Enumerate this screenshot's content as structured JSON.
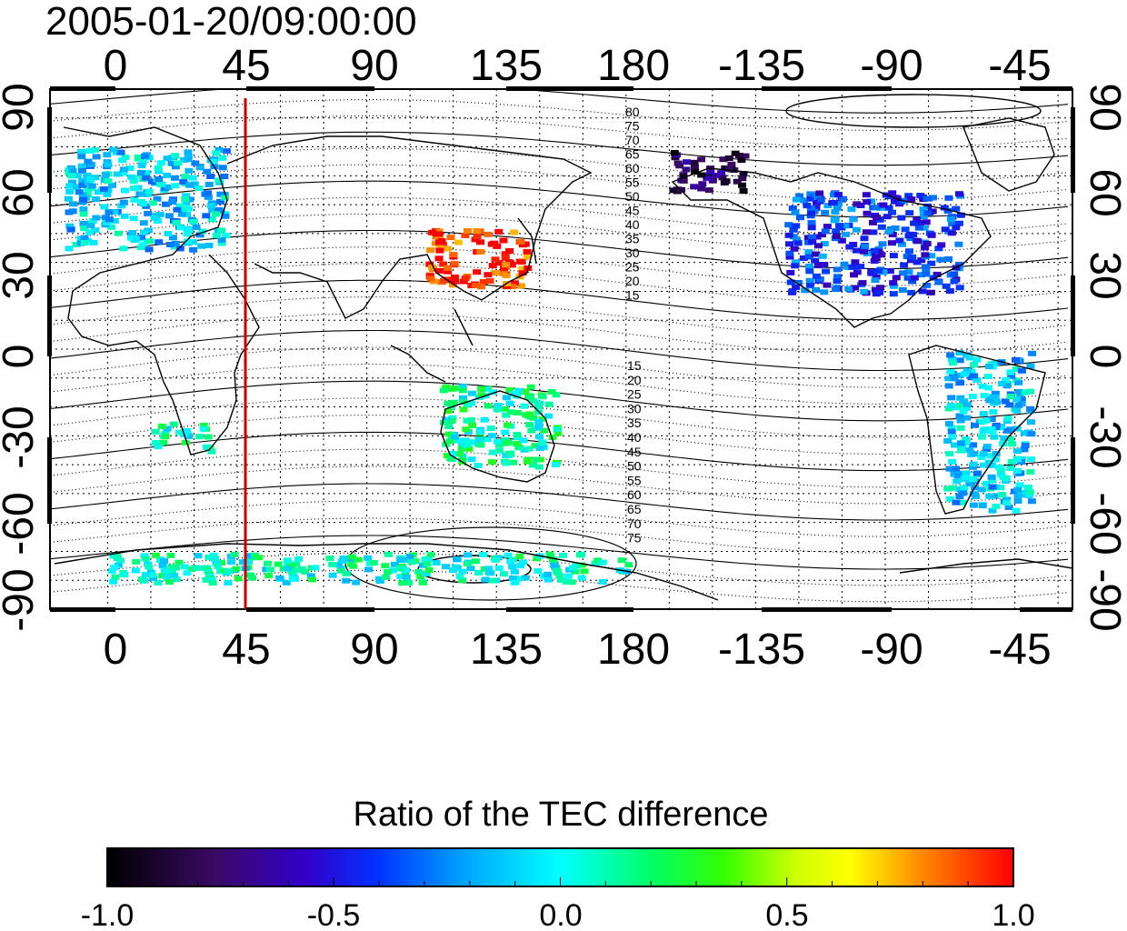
{
  "title": "2005-01-20/09:00:00",
  "top_axis_ticks": [
    "0",
    "45",
    "90",
    "135",
    "180",
    "-135",
    "-90",
    "-45"
  ],
  "bottom_axis_ticks": [
    "0",
    "45",
    "90",
    "135",
    "180",
    "-135",
    "-90",
    "-45"
  ],
  "left_axis_ticks": [
    "90",
    "60",
    "30",
    "0",
    "-30",
    "-60",
    "-90"
  ],
  "right_axis_ticks": [
    "90",
    "60",
    "30",
    "0",
    "-30",
    "-60",
    "-90"
  ],
  "contour_labels_north": [
    "80",
    "75",
    "70",
    "65",
    "60",
    "55",
    "50",
    "45",
    "40",
    "35",
    "30",
    "25",
    "20",
    "15"
  ],
  "contour_labels_south": [
    "15",
    "20",
    "25",
    "30",
    "35",
    "40",
    "45",
    "50",
    "55",
    "60",
    "65",
    "70",
    "75"
  ],
  "marker_line_longitude": 45,
  "marker_line_color": "#cc0000",
  "colorbar": {
    "title": "Ratio of the TEC difference",
    "ticks": [
      "-1.0",
      "-0.5",
      "0.0",
      "0.5",
      "1.0"
    ],
    "range": [
      -1.0,
      1.0
    ],
    "colormap": "jet-like (black → purple → blue → cyan → green → yellow → red)"
  },
  "map_data": {
    "projection": "equirectangular",
    "x_range_lon": [
      -20,
      335
    ],
    "y_range_lat": [
      -90,
      90
    ],
    "patches": [
      {
        "region": "Europe",
        "lon": [
          -15,
          40
        ],
        "lat": [
          35,
          70
        ],
        "value": -0.1
      },
      {
        "region": "East Asia",
        "lon": [
          110,
          145
        ],
        "lat": [
          22,
          42
        ],
        "value": 0.95
      },
      {
        "region": "North America",
        "lon": [
          -125,
          -65
        ],
        "lat": [
          20,
          55
        ],
        "value": -0.4
      },
      {
        "region": "Alaska",
        "lon": [
          -165,
          -140
        ],
        "lat": [
          55,
          70
        ],
        "value": -0.8
      },
      {
        "region": "South America",
        "lon": [
          -70,
          -40
        ],
        "lat": [
          -55,
          0
        ],
        "value": -0.1
      },
      {
        "region": "Australia",
        "lon": [
          115,
          155
        ],
        "lat": [
          -40,
          -12
        ],
        "value": 0.1
      },
      {
        "region": "Africa",
        "lon": [
          15,
          35
        ],
        "lat": [
          -35,
          -25
        ],
        "value": 0.05
      },
      {
        "region": "Antarctica",
        "lon": [
          0,
          180
        ],
        "lat": [
          -80,
          -70
        ],
        "value": 0.05
      }
    ]
  }
}
